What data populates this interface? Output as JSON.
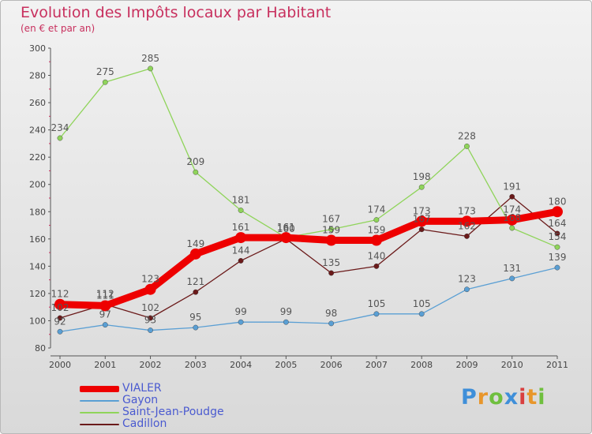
{
  "title": "Evolution des Impôts locaux par Habitant",
  "subtitle": "(en € et par an)",
  "logo": {
    "text": "Proxiti",
    "letter_colors": [
      "#3f8fd9",
      "#e8962b",
      "#6fbf3e",
      "#3f8fd9",
      "#d93f3f",
      "#e8962b",
      "#6fbf3e"
    ]
  },
  "chart_data": {
    "type": "line",
    "x": [
      2000,
      2001,
      2002,
      2003,
      2004,
      2005,
      2006,
      2007,
      2008,
      2009,
      2010,
      2011
    ],
    "ylim": [
      80,
      300
    ],
    "yticks": [
      80,
      100,
      120,
      140,
      160,
      180,
      200,
      220,
      240,
      260,
      280,
      300
    ],
    "grid": false,
    "legend_position": "bottom-left",
    "series": [
      {
        "name": "VIALER",
        "color": "#ee0000",
        "values": [
          112,
          111,
          123,
          149,
          161,
          161,
          159,
          159,
          173,
          173,
          174,
          180
        ]
      },
      {
        "name": "Gayon",
        "color": "#5a9fd4",
        "values": [
          92,
          97,
          93,
          95,
          99,
          99,
          98,
          105,
          105,
          123,
          131,
          139
        ]
      },
      {
        "name": "Saint-Jean-Poudge",
        "color": "#8fd45a",
        "values": [
          234,
          275,
          285,
          209,
          181,
          161,
          167,
          174,
          198,
          228,
          168,
          154
        ]
      },
      {
        "name": "Cadillon",
        "color": "#6b1a1a",
        "values": [
          102,
          112,
          102,
          121,
          144,
          160,
          135,
          140,
          167,
          162,
          191,
          164
        ]
      }
    ],
    "data_labels": [
      {
        "series": 0,
        "labels": [
          "112",
          "111",
          "123",
          "149",
          "161",
          "161",
          "159",
          "159",
          "173",
          "173",
          "174",
          "180"
        ]
      },
      {
        "series": 1,
        "labels": [
          "92",
          "97",
          "93",
          "95",
          "99",
          "99",
          "98",
          "105",
          "105",
          "123",
          "131",
          "139"
        ]
      },
      {
        "series": 2,
        "labels": [
          "234",
          "275",
          "285",
          "209",
          "181",
          "161",
          "167",
          "174",
          "198",
          "228",
          "168",
          "154"
        ]
      },
      {
        "series": 3,
        "labels": [
          "102",
          "112",
          "102",
          "121",
          "144",
          "160",
          "135",
          "140",
          "167",
          "162",
          "191",
          "164"
        ]
      }
    ]
  }
}
